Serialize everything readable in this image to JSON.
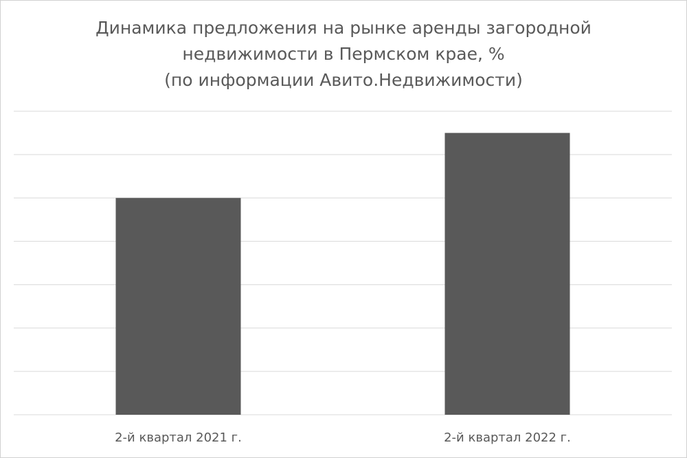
{
  "chart_data": {
    "type": "bar",
    "title": [
      "Динамика предложения на рынке аренды загородной",
      "недвижимости в Пермском крае, %",
      "(по информации Авито.Недвижимости)"
    ],
    "categories": [
      "2-й квартал 2021 г.",
      "2-й квартал 2022 г."
    ],
    "values": [
      5.0,
      6.5
    ],
    "color": "#595959",
    "ylim": [
      0,
      7
    ],
    "yticks": [
      0,
      1,
      2,
      3,
      4,
      5,
      6,
      7
    ],
    "grid": true
  }
}
